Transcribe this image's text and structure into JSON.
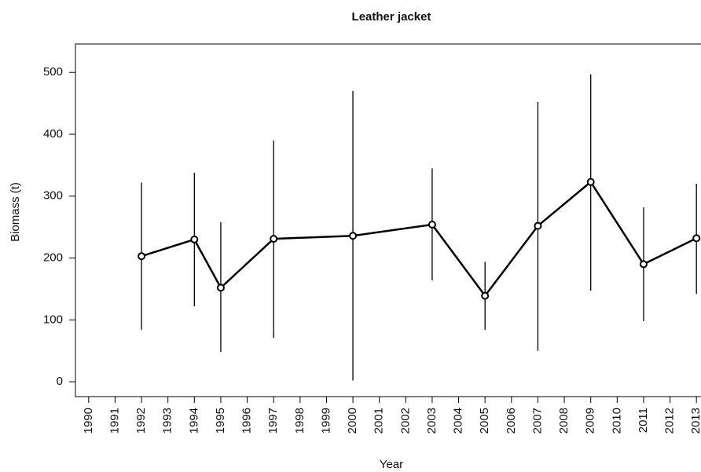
{
  "chart_data": {
    "type": "line",
    "title": "Leather jacket",
    "x_label": "Year",
    "y_label": "Biomass (t)",
    "x": [
      1992,
      1994,
      1995,
      1997,
      2000,
      2003,
      2005,
      2007,
      2009,
      2011,
      2013
    ],
    "values": [
      203,
      230,
      152,
      231,
      236,
      254,
      139,
      252,
      323,
      190,
      232
    ],
    "lower": [
      84,
      122,
      48,
      71,
      2,
      164,
      84,
      50,
      147,
      98,
      142
    ],
    "upper": [
      322,
      338,
      258,
      390,
      470,
      345,
      194,
      452,
      497,
      282,
      320
    ],
    "color": "#000000",
    "xlim": [
      1989.5,
      2013.5
    ],
    "xticks": [
      1990,
      1991,
      1992,
      1993,
      1994,
      1995,
      1996,
      1997,
      1998,
      1999,
      2000,
      2001,
      2002,
      2003,
      2004,
      2005,
      2006,
      2007,
      2008,
      2009,
      2010,
      2011,
      2012,
      2013
    ],
    "ylim": [
      -24,
      546
    ],
    "yticks": [
      0,
      100,
      200,
      300,
      400,
      500
    ],
    "grid": false
  }
}
